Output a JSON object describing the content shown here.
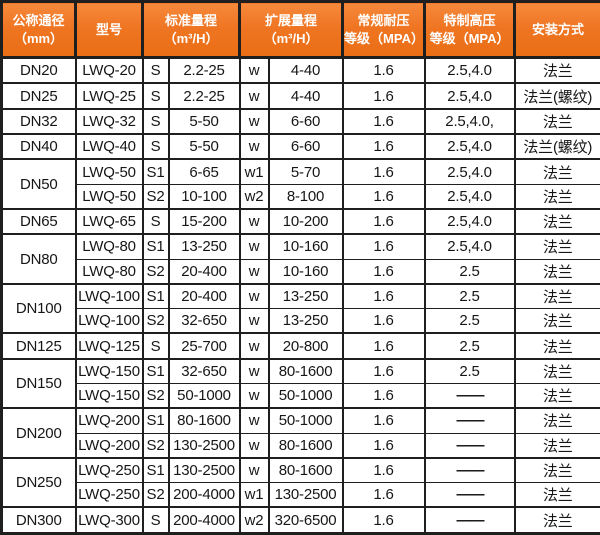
{
  "colors": {
    "header_bg": "#ef7522",
    "header_text": "#ffffff",
    "border": "#1f1f1f",
    "body_bg": "#ffffff",
    "body_text": "#161616"
  },
  "table": {
    "headers": [
      {
        "name": "diameter",
        "colspan": 1,
        "lines": [
          "公称通径",
          "（mm）"
        ]
      },
      {
        "name": "model",
        "colspan": 1,
        "lines": [
          "型号"
        ]
      },
      {
        "name": "standard-range",
        "colspan": 2,
        "lines": [
          "标准量程",
          "（m³/H）"
        ]
      },
      {
        "name": "extended-range",
        "colspan": 2,
        "lines": [
          "扩展量程",
          "（m³/H）"
        ]
      },
      {
        "name": "normal-pressure",
        "colspan": 1,
        "lines": [
          "常规耐压",
          "等级（MPA）"
        ]
      },
      {
        "name": "high-pressure",
        "colspan": 1,
        "lines": [
          "特制高压",
          "等级（MPA）"
        ]
      },
      {
        "name": "installation",
        "colspan": 1,
        "lines": [
          "安装方式"
        ]
      }
    ],
    "groups": [
      {
        "diameter": "DN20",
        "rows": [
          {
            "model": "LWQ-20",
            "std_mark": "S",
            "std_range": "2.2-25",
            "ext_mark": "w",
            "ext_range": "4-40",
            "pressure": "1.6",
            "high_pressure": "2.5,4.0",
            "install": "法兰"
          }
        ]
      },
      {
        "diameter": "DN25",
        "rows": [
          {
            "model": "LWQ-25",
            "std_mark": "S",
            "std_range": "2.2-25",
            "ext_mark": "w",
            "ext_range": "4-40",
            "pressure": "1.6",
            "high_pressure": "2.5,4.0",
            "install": "法兰(螺纹)"
          }
        ]
      },
      {
        "diameter": "DN32",
        "rows": [
          {
            "model": "LWQ-32",
            "std_mark": "S",
            "std_range": "5-50",
            "ext_mark": "w",
            "ext_range": "6-60",
            "pressure": "1.6",
            "high_pressure": "2.5,4.0,",
            "install": "法兰"
          }
        ]
      },
      {
        "diameter": "DN40",
        "rows": [
          {
            "model": "LWQ-40",
            "std_mark": "S",
            "std_range": "5-50",
            "ext_mark": "w",
            "ext_range": "6-60",
            "pressure": "1.6",
            "high_pressure": "2.5,4.0",
            "install": "法兰(螺纹)"
          }
        ]
      },
      {
        "diameter": "DN50",
        "rows": [
          {
            "model": "LWQ-50",
            "std_mark": "S1",
            "std_range": "6-65",
            "ext_mark": "w1",
            "ext_range": "5-70",
            "pressure": "1.6",
            "high_pressure": "2.5,4.0",
            "install": "法兰"
          },
          {
            "model": "LWQ-50",
            "std_mark": "S2",
            "std_range": "10-100",
            "ext_mark": "w2",
            "ext_range": "8-100",
            "pressure": "1.6",
            "high_pressure": "2.5,4.0",
            "install": "法兰"
          }
        ]
      },
      {
        "diameter": "DN65",
        "rows": [
          {
            "model": "LWQ-65",
            "std_mark": "S",
            "std_range": "15-200",
            "ext_mark": "w",
            "ext_range": "10-200",
            "pressure": "1.6",
            "high_pressure": "2.5,4.0",
            "install": "法兰"
          }
        ]
      },
      {
        "diameter": "DN80",
        "rows": [
          {
            "model": "LWQ-80",
            "std_mark": "S1",
            "std_range": "13-250",
            "ext_mark": "w",
            "ext_range": "10-160",
            "pressure": "1.6",
            "high_pressure": "2.5,4.0",
            "install": "法兰"
          },
          {
            "model": "LWQ-80",
            "std_mark": "S2",
            "std_range": "20-400",
            "ext_mark": "w",
            "ext_range": "10-160",
            "pressure": "1.6",
            "high_pressure": "2.5",
            "install": "法兰"
          }
        ]
      },
      {
        "diameter": "DN100",
        "rows": [
          {
            "model": "LWQ-100",
            "std_mark": "S1",
            "std_range": "20-400",
            "ext_mark": "w",
            "ext_range": "13-250",
            "pressure": "1.6",
            "high_pressure": "2.5",
            "install": "法兰"
          },
          {
            "model": "LWQ-100",
            "std_mark": "S2",
            "std_range": "32-650",
            "ext_mark": "w",
            "ext_range": "13-250",
            "pressure": "1.6",
            "high_pressure": "2.5",
            "install": "法兰"
          }
        ]
      },
      {
        "diameter": "DN125",
        "rows": [
          {
            "model": "LWQ-125",
            "std_mark": "S",
            "std_range": "25-700",
            "ext_mark": "w",
            "ext_range": "20-800",
            "pressure": "1.6",
            "high_pressure": "2.5",
            "install": "法兰"
          }
        ]
      },
      {
        "diameter": "DN150",
        "rows": [
          {
            "model": "LWQ-150",
            "std_mark": "S1",
            "std_range": "32-650",
            "ext_mark": "w",
            "ext_range": "80-1600",
            "pressure": "1.6",
            "high_pressure": "2.5",
            "install": "法兰"
          },
          {
            "model": "LWQ-150",
            "std_mark": "S2",
            "std_range": "50-1000",
            "ext_mark": "w",
            "ext_range": "50-1000",
            "pressure": "1.6",
            "high_pressure": "——",
            "install": "法兰"
          }
        ]
      },
      {
        "diameter": "DN200",
        "rows": [
          {
            "model": "LWQ-200",
            "std_mark": "S1",
            "std_range": "80-1600",
            "ext_mark": "w",
            "ext_range": "50-1000",
            "pressure": "1.6",
            "high_pressure": "——",
            "install": "法兰"
          },
          {
            "model": "LWQ-200",
            "std_mark": "S2",
            "std_range": "130-2500",
            "ext_mark": "w",
            "ext_range": "80-1600",
            "pressure": "1.6",
            "high_pressure": "——",
            "install": "法兰"
          }
        ]
      },
      {
        "diameter": "DN250",
        "rows": [
          {
            "model": "LWQ-250",
            "std_mark": "S1",
            "std_range": "130-2500",
            "ext_mark": "w",
            "ext_range": "80-1600",
            "pressure": "1.6",
            "high_pressure": "——",
            "install": "法兰"
          },
          {
            "model": "LWQ-250",
            "std_mark": "S2",
            "std_range": "200-4000",
            "ext_mark": "w1",
            "ext_range": "130-2500",
            "pressure": "1.6",
            "high_pressure": "——",
            "install": "法兰"
          }
        ]
      },
      {
        "diameter": "DN300",
        "rows": [
          {
            "model": "LWQ-300",
            "std_mark": "S",
            "std_range": "200-4000",
            "ext_mark": "w2",
            "ext_range": "320-6500",
            "pressure": "1.6",
            "high_pressure": "——",
            "install": "法兰"
          }
        ]
      }
    ]
  }
}
